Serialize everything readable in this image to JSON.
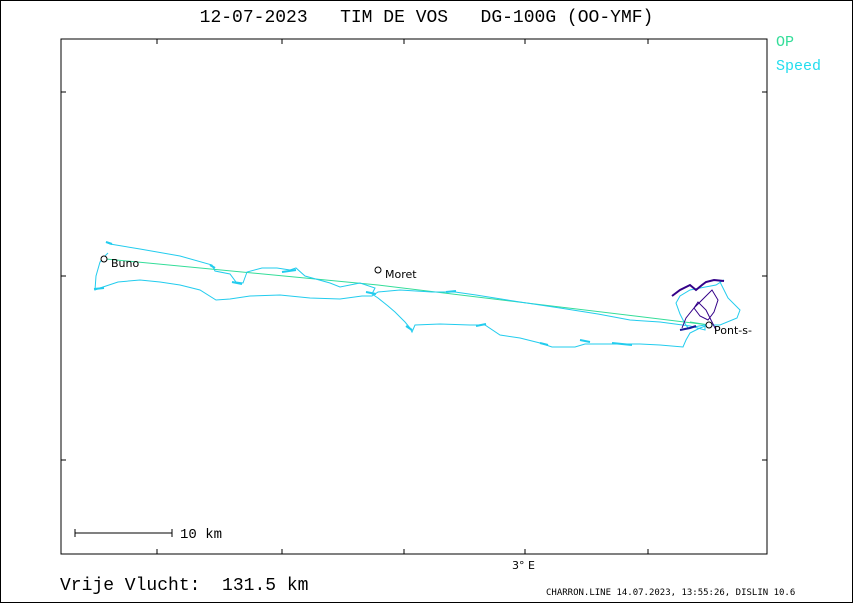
{
  "header": {
    "date": "12-07-2023",
    "pilot": "TIM DE VOS",
    "glider": "DG-100G (OO-YMF)"
  },
  "legend": {
    "items": [
      {
        "label": "OP",
        "color": "#33dd99"
      },
      {
        "label": "Speed",
        "color": "#22ddee"
      }
    ]
  },
  "map": {
    "scale_label": "10 km",
    "axis_label": "3° E",
    "places": [
      {
        "name": "Buno"
      },
      {
        "name": "Moret"
      },
      {
        "name": "Pont-s-"
      }
    ]
  },
  "footer": {
    "distance_label": "Vrije Vlucht:",
    "distance_value": "131.5 km",
    "credit": "CHARRON.LINE 14.07.2023, 13:55:26, DISLIN 10.6"
  },
  "colors": {
    "track": "#22ccee",
    "task": "#33dd99",
    "climb": "#1a1a99",
    "thermal": "#330088"
  }
}
